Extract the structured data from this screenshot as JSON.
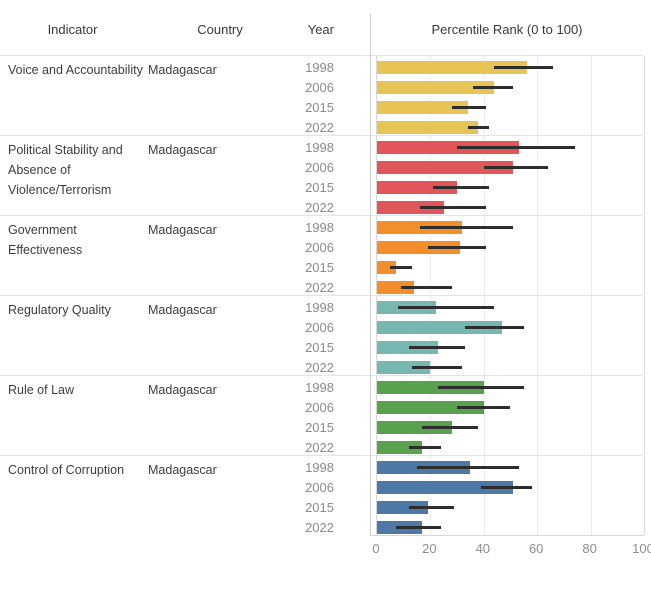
{
  "header": {
    "indicator": "Indicator",
    "country": "Country",
    "year": "Year",
    "percentile": "Percentile Rank (0 to 100)"
  },
  "chart_data": {
    "type": "bar",
    "orientation": "horizontal",
    "title": "",
    "xlabel": "Percentile Rank (0 to 100)",
    "ylabel": "",
    "xlim": [
      0,
      100
    ],
    "x_ticks": [
      0,
      20,
      40,
      60,
      80,
      100
    ],
    "grid": true,
    "legend": false,
    "error_bars": true,
    "error_bar_color": "#2d2d2d",
    "country": "Madagascar",
    "years": [
      "1998",
      "2006",
      "2015",
      "2022"
    ],
    "indicators": [
      {
        "name": "Voice and Accountability",
        "color": "#E6C455",
        "rows": [
          {
            "year": "1998",
            "value": 56,
            "ci_low": 44,
            "ci_high": 66
          },
          {
            "year": "2006",
            "value": 44,
            "ci_low": 36,
            "ci_high": 51
          },
          {
            "year": "2015",
            "value": 34,
            "ci_low": 28,
            "ci_high": 41
          },
          {
            "year": "2022",
            "value": 38,
            "ci_low": 34,
            "ci_high": 42
          }
        ]
      },
      {
        "name": "Political Stability and Absence of Violence/Terrorism",
        "color": "#E15759",
        "rows": [
          {
            "year": "1998",
            "value": 53,
            "ci_low": 30,
            "ci_high": 74
          },
          {
            "year": "2006",
            "value": 51,
            "ci_low": 40,
            "ci_high": 64
          },
          {
            "year": "2015",
            "value": 30,
            "ci_low": 21,
            "ci_high": 42
          },
          {
            "year": "2022",
            "value": 25,
            "ci_low": 16,
            "ci_high": 41
          }
        ]
      },
      {
        "name": "Government Effectiveness",
        "color": "#F28E2B",
        "rows": [
          {
            "year": "1998",
            "value": 32,
            "ci_low": 16,
            "ci_high": 51
          },
          {
            "year": "2006",
            "value": 31,
            "ci_low": 19,
            "ci_high": 41
          },
          {
            "year": "2015",
            "value": 7,
            "ci_low": 5,
            "ci_high": 13
          },
          {
            "year": "2022",
            "value": 14,
            "ci_low": 9,
            "ci_high": 28
          }
        ]
      },
      {
        "name": "Regulatory Quality",
        "color": "#76B7B2",
        "rows": [
          {
            "year": "1998",
            "value": 22,
            "ci_low": 8,
            "ci_high": 44
          },
          {
            "year": "2006",
            "value": 47,
            "ci_low": 33,
            "ci_high": 55
          },
          {
            "year": "2015",
            "value": 23,
            "ci_low": 12,
            "ci_high": 33
          },
          {
            "year": "2022",
            "value": 20,
            "ci_low": 13,
            "ci_high": 32
          }
        ]
      },
      {
        "name": "Rule of Law",
        "color": "#59A14F",
        "rows": [
          {
            "year": "1998",
            "value": 40,
            "ci_low": 23,
            "ci_high": 55
          },
          {
            "year": "2006",
            "value": 40,
            "ci_low": 30,
            "ci_high": 50
          },
          {
            "year": "2015",
            "value": 28,
            "ci_low": 17,
            "ci_high": 38
          },
          {
            "year": "2022",
            "value": 17,
            "ci_low": 12,
            "ci_high": 24
          }
        ]
      },
      {
        "name": "Control of Corruption",
        "color": "#4E79A7",
        "rows": [
          {
            "year": "1998",
            "value": 35,
            "ci_low": 15,
            "ci_high": 53
          },
          {
            "year": "2006",
            "value": 51,
            "ci_low": 39,
            "ci_high": 58
          },
          {
            "year": "2015",
            "value": 19,
            "ci_low": 12,
            "ci_high": 29
          },
          {
            "year": "2022",
            "value": 17,
            "ci_low": 7,
            "ci_high": 24
          }
        ]
      }
    ]
  }
}
